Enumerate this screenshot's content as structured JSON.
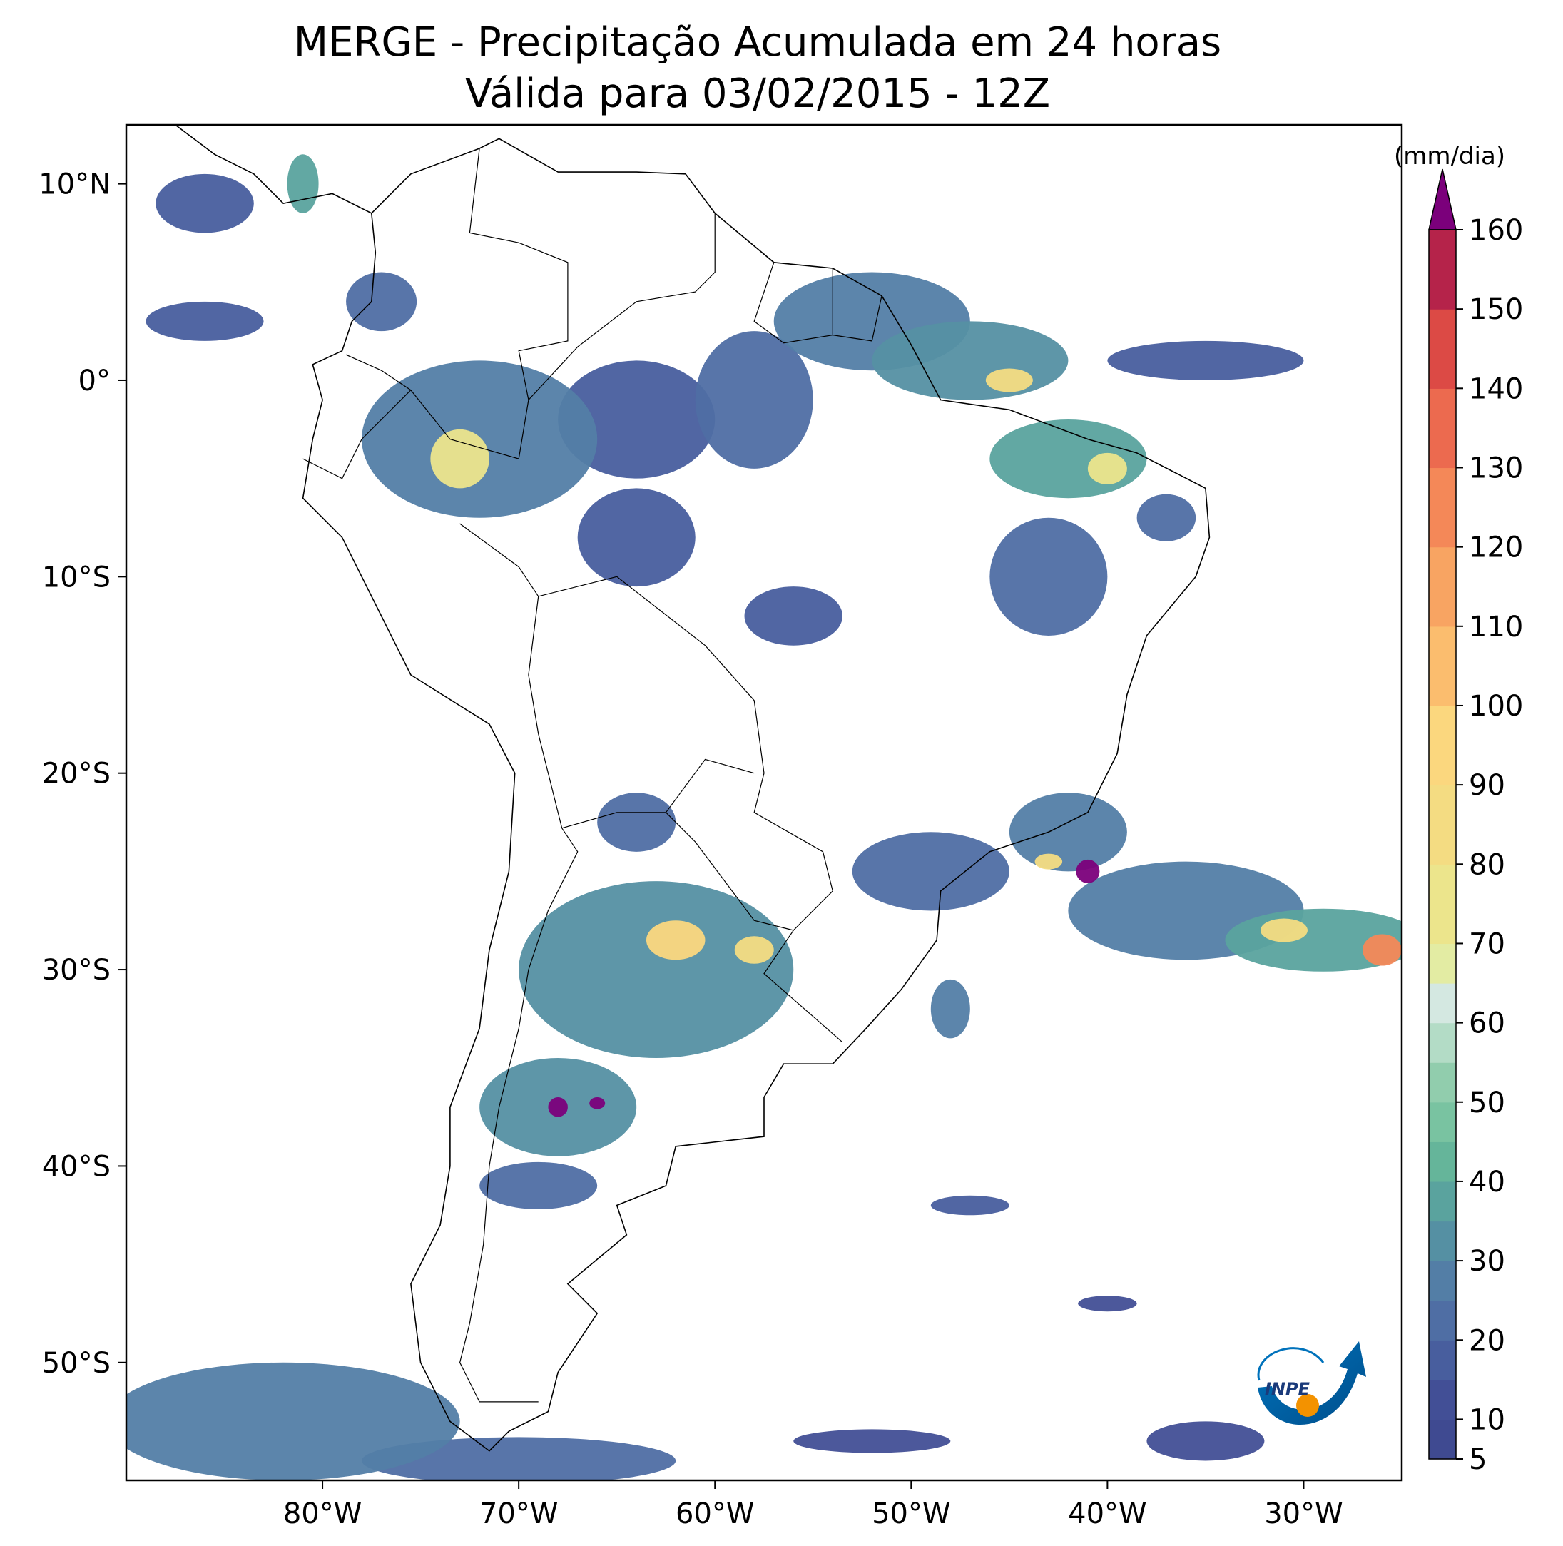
{
  "title": {
    "line1": "MERGE - Precipitação Acumulada em 24 horas",
    "line2": "Válida para 03/02/2015 - 12Z"
  },
  "map": {
    "region": "South America",
    "lon_range": [
      -90,
      -25
    ],
    "lat_range": [
      -56,
      13
    ],
    "x_ticks": [
      {
        "lon": -80,
        "label": "80°W"
      },
      {
        "lon": -70,
        "label": "70°W"
      },
      {
        "lon": -60,
        "label": "60°W"
      },
      {
        "lon": -50,
        "label": "50°W"
      },
      {
        "lon": -40,
        "label": "40°W"
      },
      {
        "lon": -30,
        "label": "30°W"
      }
    ],
    "y_ticks": [
      {
        "lat": 10,
        "label": "10°N"
      },
      {
        "lat": 0,
        "label": "0°"
      },
      {
        "lat": -10,
        "label": "10°S"
      },
      {
        "lat": -20,
        "label": "20°S"
      },
      {
        "lat": -30,
        "label": "30°S"
      },
      {
        "lat": -40,
        "label": "40°S"
      },
      {
        "lat": -50,
        "label": "50°S"
      }
    ],
    "rain_areas": [
      {
        "lon": -72,
        "lat": -3,
        "rx": 6,
        "ry": 4,
        "level": 25
      },
      {
        "lon": -73,
        "lat": -4,
        "rx": 1.5,
        "ry": 1.5,
        "level": 75
      },
      {
        "lon": -64,
        "lat": -2,
        "rx": 4,
        "ry": 3,
        "level": 15
      },
      {
        "lon": -58,
        "lat": -1,
        "rx": 3,
        "ry": 3.5,
        "level": 20
      },
      {
        "lon": -52,
        "lat": 3,
        "rx": 5,
        "ry": 2.5,
        "level": 25
      },
      {
        "lon": -47,
        "lat": 1,
        "rx": 5,
        "ry": 2,
        "level": 30
      },
      {
        "lon": -45,
        "lat": 0,
        "rx": 1.2,
        "ry": 0.6,
        "level": 85
      },
      {
        "lon": -42,
        "lat": -4,
        "rx": 4,
        "ry": 2,
        "level": 35
      },
      {
        "lon": -40,
        "lat": -4.5,
        "rx": 1,
        "ry": 0.8,
        "level": 75
      },
      {
        "lon": -35,
        "lat": 1,
        "rx": 5,
        "ry": 1,
        "level": 15
      },
      {
        "lon": -64,
        "lat": -8,
        "rx": 3,
        "ry": 2.5,
        "level": 15
      },
      {
        "lon": -56,
        "lat": -12,
        "rx": 2.5,
        "ry": 1.5,
        "level": 15
      },
      {
        "lon": -43,
        "lat": -10,
        "rx": 3,
        "ry": 3,
        "level": 20
      },
      {
        "lon": -37,
        "lat": -7,
        "rx": 1.5,
        "ry": 1.2,
        "level": 20
      },
      {
        "lon": -63,
        "lat": -30,
        "rx": 7,
        "ry": 4.5,
        "level": 30
      },
      {
        "lon": -62,
        "lat": -28.5,
        "rx": 1.5,
        "ry": 1,
        "level": 95
      },
      {
        "lon": -58,
        "lat": -29,
        "rx": 1,
        "ry": 0.7,
        "level": 85
      },
      {
        "lon": -68,
        "lat": -37,
        "rx": 4,
        "ry": 2.5,
        "level": 30
      },
      {
        "lon": -68,
        "lat": -37,
        "rx": 0.5,
        "ry": 0.5,
        "level": 165
      },
      {
        "lon": -66,
        "lat": -36.8,
        "rx": 0.4,
        "ry": 0.3,
        "level": 165
      },
      {
        "lon": -64,
        "lat": -22.5,
        "rx": 2,
        "ry": 1.5,
        "level": 20
      },
      {
        "lon": -49,
        "lat": -25,
        "rx": 4,
        "ry": 2,
        "level": 20
      },
      {
        "lon": -42,
        "lat": -23,
        "rx": 3,
        "ry": 2,
        "level": 25
      },
      {
        "lon": -36,
        "lat": -27,
        "rx": 6,
        "ry": 2.5,
        "level": 25
      },
      {
        "lon": -29,
        "lat": -28.5,
        "rx": 5,
        "ry": 1.6,
        "level": 35
      },
      {
        "lon": -31,
        "lat": -28,
        "rx": 1.2,
        "ry": 0.6,
        "level": 85
      },
      {
        "lon": -26,
        "lat": -29,
        "rx": 1,
        "ry": 0.8,
        "level": 125
      },
      {
        "lon": -41,
        "lat": -25,
        "rx": 0.6,
        "ry": 0.6,
        "level": 165
      },
      {
        "lon": -43,
        "lat": -24.5,
        "rx": 0.7,
        "ry": 0.4,
        "level": 85
      },
      {
        "lon": -69,
        "lat": -41,
        "rx": 3,
        "ry": 1.2,
        "level": 20
      },
      {
        "lon": -77,
        "lat": 4,
        "rx": 1.8,
        "ry": 1.5,
        "level": 20
      },
      {
        "lon": -86,
        "lat": 9,
        "rx": 2.5,
        "ry": 1.5,
        "level": 15
      },
      {
        "lon": -81,
        "lat": 10,
        "rx": 0.8,
        "ry": 1.5,
        "level": 35
      },
      {
        "lon": -86,
        "lat": 3,
        "rx": 3,
        "ry": 1,
        "level": 15
      },
      {
        "lon": -48,
        "lat": -32,
        "rx": 1,
        "ry": 1.5,
        "level": 25
      },
      {
        "lon": -47,
        "lat": -42,
        "rx": 2,
        "ry": 0.5,
        "level": 15
      },
      {
        "lon": -40,
        "lat": -47,
        "rx": 1.5,
        "ry": 0.4,
        "level": 10
      },
      {
        "lon": -82,
        "lat": -53,
        "rx": 9,
        "ry": 3,
        "level": 25
      },
      {
        "lon": -70,
        "lat": -55,
        "rx": 8,
        "ry": 1.2,
        "level": 20
      },
      {
        "lon": -52,
        "lat": -54,
        "rx": 4,
        "ry": 0.6,
        "level": 10
      },
      {
        "lon": -35,
        "lat": -54,
        "rx": 3,
        "ry": 1,
        "level": 10
      }
    ]
  },
  "colorbar": {
    "unit": "(mm/dia)",
    "min": 5,
    "max": 160,
    "extend": "max",
    "over_color": "#7b007b",
    "ticks": [
      {
        "value": 5,
        "label": "5"
      },
      {
        "value": 10,
        "label": "10"
      },
      {
        "value": 20,
        "label": "20"
      },
      {
        "value": 30,
        "label": "30"
      },
      {
        "value": 40,
        "label": "40"
      },
      {
        "value": 50,
        "label": "50"
      },
      {
        "value": 60,
        "label": "60"
      },
      {
        "value": 70,
        "label": "70"
      },
      {
        "value": 80,
        "label": "80"
      },
      {
        "value": 90,
        "label": "90"
      },
      {
        "value": 100,
        "label": "100"
      },
      {
        "value": 110,
        "label": "110"
      },
      {
        "value": 120,
        "label": "120"
      },
      {
        "value": 130,
        "label": "130"
      },
      {
        "value": 140,
        "label": "140"
      },
      {
        "value": 150,
        "label": "150"
      },
      {
        "value": 160,
        "label": "160"
      }
    ],
    "bins": [
      {
        "from": 5,
        "to": 10,
        "color": "#3f4a91"
      },
      {
        "from": 10,
        "to": 15,
        "color": "#424f96"
      },
      {
        "from": 15,
        "to": 20,
        "color": "#485e9e"
      },
      {
        "from": 20,
        "to": 25,
        "color": "#4f6ea4"
      },
      {
        "from": 25,
        "to": 30,
        "color": "#537ea6"
      },
      {
        "from": 30,
        "to": 35,
        "color": "#5590a3"
      },
      {
        "from": 35,
        "to": 40,
        "color": "#5aa39e"
      },
      {
        "from": 40,
        "to": 45,
        "color": "#65b59a"
      },
      {
        "from": 45,
        "to": 50,
        "color": "#79c3a1"
      },
      {
        "from": 50,
        "to": 55,
        "color": "#91cdad"
      },
      {
        "from": 55,
        "to": 60,
        "color": "#b3dcc6"
      },
      {
        "from": 60,
        "to": 65,
        "color": "#d4e8e1"
      },
      {
        "from": 65,
        "to": 70,
        "color": "#e3eca3"
      },
      {
        "from": 70,
        "to": 80,
        "color": "#ece58c"
      },
      {
        "from": 80,
        "to": 90,
        "color": "#f4dc82"
      },
      {
        "from": 90,
        "to": 100,
        "color": "#fbd77e"
      },
      {
        "from": 100,
        "to": 110,
        "color": "#fbbd6e"
      },
      {
        "from": 110,
        "to": 120,
        "color": "#f8a462"
      },
      {
        "from": 120,
        "to": 130,
        "color": "#f48858"
      },
      {
        "from": 130,
        "to": 140,
        "color": "#ec6a4f"
      },
      {
        "from": 140,
        "to": 150,
        "color": "#dc4a45"
      },
      {
        "from": 150,
        "to": 160,
        "color": "#b5234a"
      }
    ]
  },
  "logo": {
    "text": "INPE",
    "colors": {
      "blue": "#0072bb",
      "orange": "#f39200"
    }
  }
}
